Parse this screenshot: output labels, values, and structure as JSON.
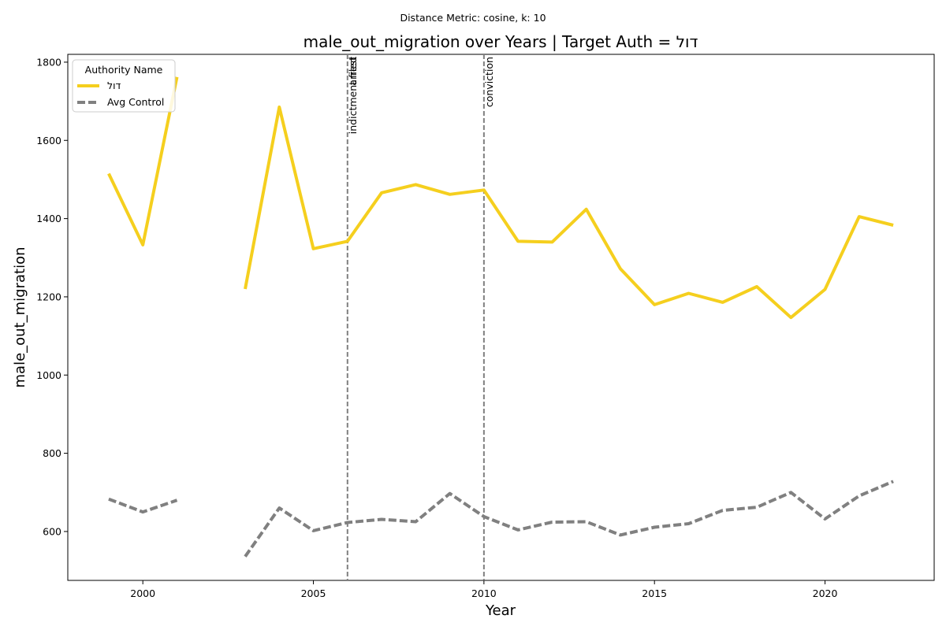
{
  "chart_data": {
    "type": "line",
    "suptitle": "Distance Metric: cosine, k: 10",
    "title": "male_out_migration over Years | Target Auth = דול",
    "xlabel": "Year",
    "ylabel": "male_out_migration",
    "xlim": [
      1997.8,
      2023.2
    ],
    "ylim": [
      475,
      1820
    ],
    "xticks": [
      2000,
      2005,
      2010,
      2015,
      2020
    ],
    "yticks": [
      600,
      800,
      1000,
      1200,
      1400,
      1600,
      1800
    ],
    "grid": false,
    "legend": {
      "title": "Authority Name",
      "placement": "upper-left"
    },
    "series": [
      {
        "name": "דול",
        "color": "#f5cf1e",
        "style": "solid",
        "x": [
          1999,
          2000,
          2001,
          2002,
          2003,
          2004,
          2005,
          2006,
          2007,
          2008,
          2009,
          2010,
          2011,
          2012,
          2013,
          2014,
          2015,
          2016,
          2017,
          2018,
          2019,
          2020,
          2021,
          2022
        ],
        "y": [
          1515,
          1333,
          1762,
          null,
          1220,
          1685,
          1323,
          1342,
          1466,
          1487,
          1462,
          1473,
          1342,
          1340,
          1424,
          1272,
          1180,
          1209,
          1186,
          1226,
          1147,
          1219,
          1405,
          1383
        ]
      },
      {
        "name": "Avg Control",
        "color": "#808080",
        "style": "dashed",
        "x": [
          1999,
          2000,
          2001,
          2002,
          2003,
          2004,
          2005,
          2006,
          2007,
          2008,
          2009,
          2010,
          2011,
          2012,
          2013,
          2014,
          2015,
          2016,
          2017,
          2018,
          2019,
          2020,
          2021,
          2022
        ],
        "y": [
          683,
          650,
          680,
          null,
          536,
          660,
          602,
          623,
          631,
          625,
          697,
          638,
          604,
          624,
          625,
          591,
          611,
          620,
          654,
          662,
          700,
          632,
          691,
          728
        ]
      }
    ],
    "annotations": [
      {
        "x": 2006,
        "label": "indictment filed"
      },
      {
        "x": 2006,
        "label": "arrest"
      },
      {
        "x": 2010,
        "label": "conviction"
      }
    ]
  }
}
